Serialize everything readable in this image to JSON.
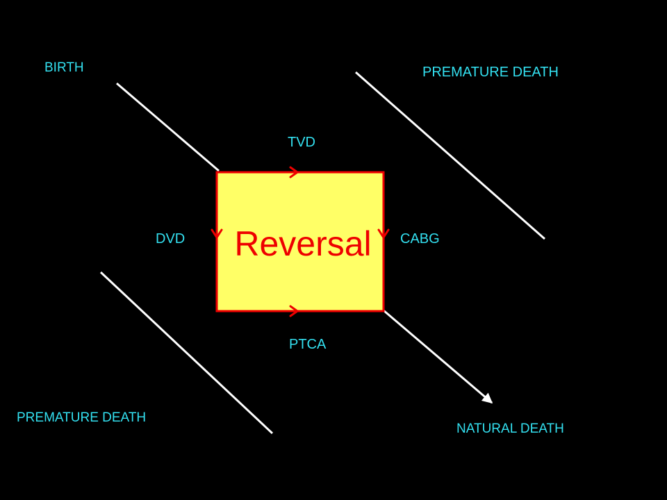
{
  "labels": {
    "birth": "BIRTH",
    "premature_death_top": "PREMATURE DEATH",
    "premature_death_bottom": "PREMATURE DEATH",
    "natural_death": "NATURAL DEATH",
    "tvd": "TVD",
    "dvd": "DVD",
    "cabg": "CABG",
    "ptca": "PTCA"
  },
  "center": {
    "text": "Reversal"
  },
  "colors": {
    "background": "#000000",
    "label_text": "#33e0f0",
    "box_fill": "#ffff66",
    "box_border": "#ee0000",
    "center_text": "#ee0000",
    "lines": "#ffffff"
  }
}
